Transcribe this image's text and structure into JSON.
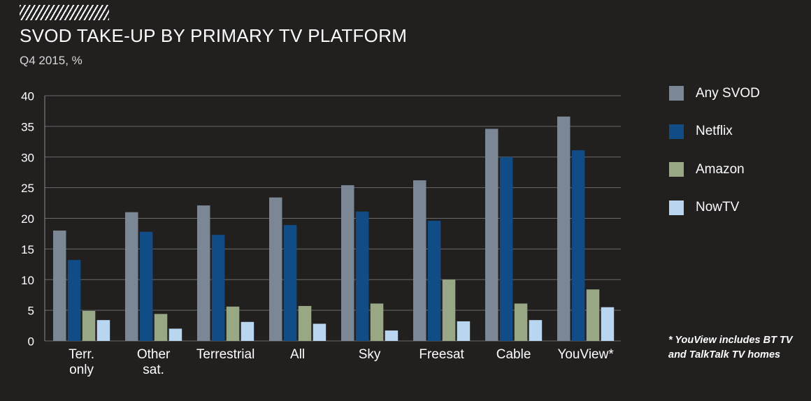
{
  "header": {
    "title": "SVOD TAKE-UP BY PRIMARY TV PLATFORM",
    "subtitle": "Q4 2015, %"
  },
  "footnote": "* YouView includes BT TV and TalkTalk TV homes",
  "chart_data": {
    "type": "bar",
    "title": "SVOD TAKE-UP BY PRIMARY TV PLATFORM",
    "subtitle": "Q4 2015, %",
    "xlabel": "",
    "ylabel": "",
    "ylim": [
      0,
      40
    ],
    "yticks": [
      0,
      5,
      10,
      15,
      20,
      25,
      30,
      35,
      40
    ],
    "grid": true,
    "legend_position": "right",
    "categories": [
      [
        "Terr.",
        "only"
      ],
      [
        "Other",
        "sat."
      ],
      [
        "Terrestrial"
      ],
      [
        "All"
      ],
      [
        "Sky"
      ],
      [
        "Freesat"
      ],
      [
        "Cable"
      ],
      [
        "YouView*"
      ]
    ],
    "series": [
      {
        "name": "Any SVOD",
        "color": "#7b8795",
        "values": [
          18.0,
          21.0,
          22.1,
          23.4,
          25.4,
          26.2,
          34.6,
          36.6
        ]
      },
      {
        "name": "Netflix",
        "color": "#104c86",
        "values": [
          13.2,
          17.8,
          17.3,
          18.9,
          21.1,
          19.6,
          30.0,
          31.1
        ]
      },
      {
        "name": "Amazon",
        "color": "#98a784",
        "values": [
          4.9,
          4.4,
          5.6,
          5.7,
          6.1,
          10.0,
          6.1,
          8.4
        ]
      },
      {
        "name": "NowTV",
        "color": "#b8d6ef",
        "values": [
          3.4,
          2.0,
          3.1,
          2.8,
          1.7,
          3.2,
          3.4,
          5.5
        ]
      }
    ]
  }
}
